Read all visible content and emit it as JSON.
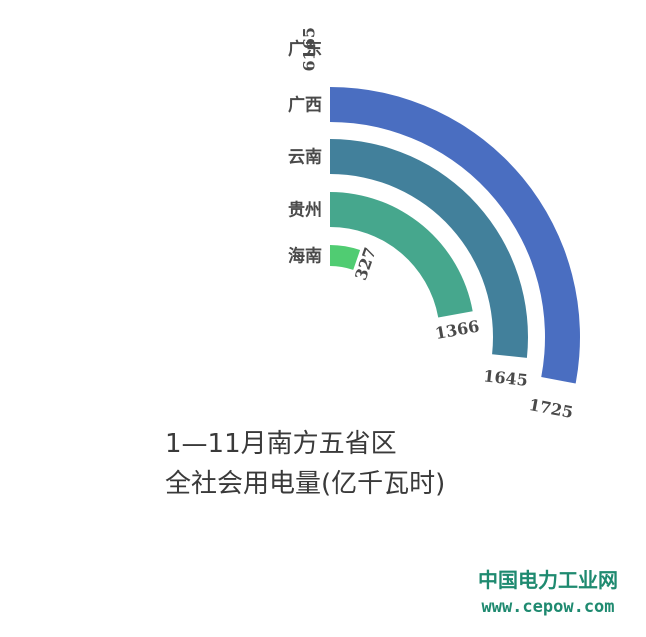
{
  "chart_data": {
    "type": "radial-bar",
    "title_lines": [
      "1—11月南方五省区",
      "全社会用电量(亿千瓦时)"
    ],
    "categories": [
      "广东",
      "广西",
      "云南",
      "贵州",
      "海南"
    ],
    "values": [
      6165,
      1725,
      1645,
      1366,
      327
    ],
    "value_labels": [
      "6165",
      "1725",
      "1645",
      "1366",
      "327"
    ],
    "colors": [
      "#3f4ca6",
      "#4a6ec1",
      "#42809b",
      "#46a78d",
      "#50cc72"
    ]
  },
  "watermark": {
    "name": "中国电力工业网",
    "url": "www.cepow.com"
  }
}
